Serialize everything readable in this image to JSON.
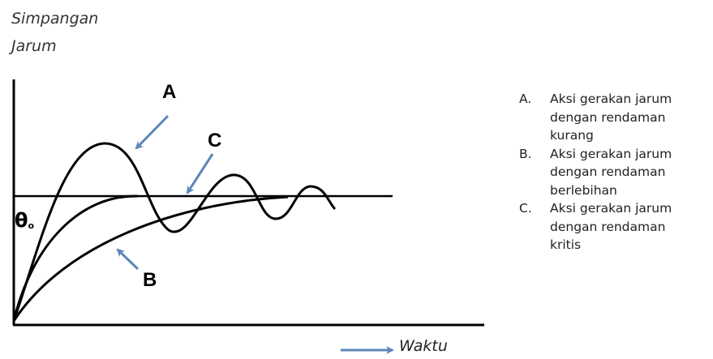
{
  "y_axis_label": [
    "Simpangan",
    "Jarum"
  ],
  "x_axis_label": "Waktu",
  "theta_label": {
    "symbol": "θ",
    "subscript": "o"
  },
  "curve_labels": {
    "a": "A",
    "b": "B",
    "c": "C"
  },
  "legend": [
    {
      "key": "A.",
      "lines": [
        "Aksi gerakan jarum",
        "dengan rendaman",
        "kurang"
      ]
    },
    {
      "key": "B.",
      "lines": [
        "Aksi gerakan jarum",
        "dengan rendaman",
        "berlebihan"
      ]
    },
    {
      "key": "C.",
      "lines": [
        "Aksi gerakan jarum",
        "dengan rendaman",
        "kritis"
      ]
    }
  ],
  "colors": {
    "curve": "#000000",
    "arrow": "#5b86b8",
    "text": "#222222"
  }
}
